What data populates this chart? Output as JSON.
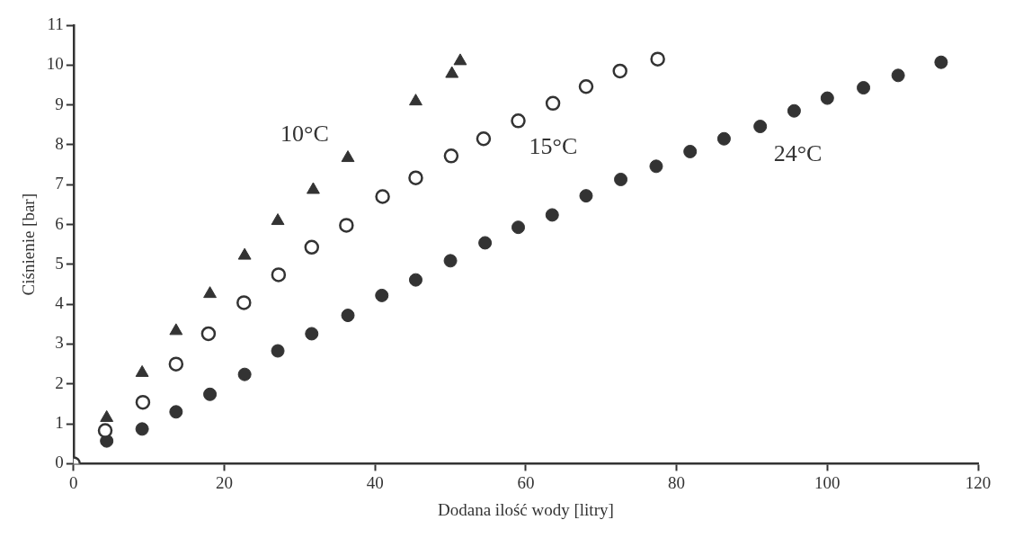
{
  "chart_data": {
    "type": "scatter",
    "xlabel": "Dodana ilość wody [litry]",
    "ylabel": "Ciśnienie [bar]",
    "xlim": [
      0,
      120
    ],
    "xticks": [
      0,
      20,
      40,
      60,
      80,
      100,
      120
    ],
    "ylim": [
      0,
      11
    ],
    "yticks": [
      0,
      1,
      2,
      3,
      4,
      5,
      6,
      7,
      8,
      9,
      10,
      11
    ],
    "grid": false,
    "legend": false,
    "series": [
      {
        "name": "10°C",
        "color": "#333333",
        "marker": "triangle",
        "x": [
          4.4,
          9.1,
          13.6,
          18.1,
          22.7,
          27.1,
          31.8,
          36.4,
          45.4,
          50.2,
          51.3
        ],
        "values": [
          1.15,
          2.28,
          3.33,
          4.26,
          5.22,
          6.09,
          6.87,
          7.67,
          9.09,
          9.78,
          10.1
        ]
      },
      {
        "name": "15°C",
        "color": "#333333",
        "marker": "circle",
        "x": [
          0,
          4.2,
          9.2,
          13.6,
          17.9,
          22.6,
          27.2,
          31.6,
          36.2,
          41.0,
          45.4,
          50.1,
          54.4,
          59.0,
          63.6,
          68.0,
          72.5,
          77.5
        ],
        "values": [
          0,
          0.83,
          1.54,
          2.5,
          3.26,
          4.04,
          4.74,
          5.43,
          5.98,
          6.7,
          7.17,
          7.72,
          8.15,
          8.6,
          9.04,
          9.46,
          9.85,
          10.15
        ]
      },
      {
        "name": "24°C",
        "color": "#333333",
        "marker": "circle",
        "x": [
          4.4,
          9.1,
          13.6,
          18.1,
          22.7,
          27.1,
          31.6,
          36.4,
          40.9,
          45.4,
          50.0,
          54.6,
          59.0,
          63.5,
          68.0,
          72.6,
          77.3,
          81.8,
          86.3,
          91.1,
          95.6,
          100.0,
          104.8,
          109.4,
          115.1
        ],
        "values": [
          0.57,
          0.87,
          1.3,
          1.74,
          2.24,
          2.83,
          3.26,
          3.72,
          4.22,
          4.61,
          5.09,
          5.54,
          5.93,
          6.24,
          6.72,
          7.13,
          7.46,
          7.83,
          8.15,
          8.46,
          8.85,
          9.17,
          9.43,
          9.74,
          10.07
        ]
      }
    ]
  }
}
